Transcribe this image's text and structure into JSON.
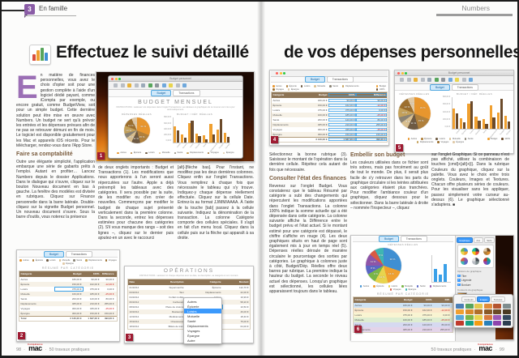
{
  "brand": {
    "top": "Compétence",
    "name": "mac"
  },
  "left": {
    "tab_number": "3",
    "tab_label": "En famille",
    "title": "Effectuez le suivi détaillé",
    "intro": "n matière de finances personnelles, vous avez le choix d'opter soit pour une gestion complète à l'aide d'un logiciel dédié payant, comme iCompta par exemple, ou encore gratuit, comme BudgetView, soit pour un simple budget. Cette dernière solution peut être mise en œuvre avec Numbers. Un budget ne sert qu'à prévoir les entrées et les dépenses prévues afin de ne pas se retrouver démuni en fin de mois. Le logiciel est disponible gratuitement pour les Mac et appareils iOS récents. Pour le télécharger, rendez-vous dans l'App Store.",
    "subhead1": "Faire sa comptabilité",
    "col1b": "Outre une élégante simplicité, l'application embarque une série de gabarits prêts à l'emploi. Autant en profiter… Lancez Numbers depuis le dossier Applications. Dans le dialogue qui s'ouvre, cliquez sur le bouton Nouveau document en bas à gauche. La fenêtre des modèles est divisée en rubriques. Cliquez sur Finance personnelle dans la barre latérale. Double-cliquez sur la vignette Budget personnel. Un nouveau document s'ouvre. Sous la barre d'outils, vous noterez la présence",
    "col2": "de deux onglets importants : Budget et Transactions (1). Les modifications que nous apporterons à l'un seront aussi répercutées sur l'autre. Apple a déjà prérempli les tableaux avec des catégories. Il sera possible par la suite, de les modifier ou d'en créer de nouvelles. Commençons par modifier le budget de chaque sujet présenté verticalement dans la première colonne. Dans la seconde, entrez les dépenses estimées pour chacune des catégories (2). S'il vous manque des rangs – soit des lignes –, cliquez sur le dernier puis ajoutez-en un avec le raccourci",
    "col3": "[alt]-[flèche bas]. Pour l'instant, ne modifiez pas les deux dernières colonnes. Cliquez enfin sur l'onglet Transactions. Vous remplirez à chaque fois que nécessaire le tableau qui s'y trouve. Indiquez-y chaque dépense réellement effectuée. Cliquez sur la cellule Date. Entrez-la au format JJ/MM/AAAA. À l'aide de la touche [tab] passez à la cellule suivante. Indiquez la dénomination de la transaction. La colonne Catégorie comporte des cellules spéciales. Il s'agit en fait d'un menu local. Cliquez dans la cellule puis sur la flèche qui apparaît à sa droite.",
    "footer": {
      "page": "98",
      "text": "50 travaux pratiques"
    }
  },
  "right": {
    "header_label": "Numbers",
    "title": "de vos dépenses personnelles",
    "col1a": "Sélectionnez la bonne rubrique (3). Saisissez le montant de l'opération dans la dernière cellule. Répétez cela autant de fois que nécessaire.",
    "subhead1": "Consulter l'état des finances",
    "col1b": "Revenez sur l'onglet Budget. Vous constaterez que le tableau Résumé par catégorie a subi des changements qui répercutent les modifications apportées dans l'onglet Transactions. La colonne 100% indique la somme actuelle qui a été dépensée dans cette catégorie. La colonne suivante affiche la Différence entre le budget prévu et l'état actuel. Si le montant estimé pour une catégorie est dépassé, le chiffre s'affiche en rouge (4). Les deux graphiques situés en haut de page sont également mis à jour en temps réel (5). Dépenses réelles déroule de manière circulaire le pourcentage des sorties par catégories. Le graphique à colonnes juste à côté, Budget/Dép. Réelles offre deux barres par rubrique. La première indique la hauteur du budget. La seconde le niveau actuel des dépenses. Lorsqu'un graphique est sélectionné, les cellules liées apparaissent toujours dans le tableau.",
    "subhead2": "Embellir son budget",
    "col2": "Les couleurs utilisées dans ce fichier sont très sobres, mais pas forcément au goût de tout le monde. De plus, il serait plus facile de s'y retrouver dans les parts du graphique circulaire si les teintes attribuées aux catégories étaient plus tranchées. Pour modifier l'ambiance couleur d'un graphique, cliquez dessous pour le sélectionner. Dans la barre latérale à droite – nommée l'Inspecteur –, cliquez",
    "col3": "sur l'onglet Graphique. Si ce panneau n'est pas affiché, utilisez la combinaison de touches [cmd]+[alt]+[i]. Dans la rubrique Couleurs du graphique, cliquez sur la palette. Vous avez le choix entre trois onglets. Couleurs, Images et Textures. Chacun offre plusieurs séries de couleurs. Pour les visualiser sans les appliquer, passez simplement votre curseur au-dessus (6). Le graphique sélectionné s'adaptera. ■",
    "footer": {
      "page": "99",
      "text": "50 travaux pratiques"
    }
  },
  "ui": {
    "traffic": [
      "#ff5f57",
      "#febc2e",
      "#28c840"
    ],
    "tabs": [
      "Budget",
      "Transactions"
    ],
    "toolbar_icons": [
      {
        "n": "view-icon",
        "c": "#b9bec5"
      },
      {
        "n": "zoom-icon",
        "c": "#b9bec5"
      },
      {
        "n": "category-icon",
        "c": "#e8b23a"
      },
      {
        "n": "refresh-icon",
        "c": "#b9bec5"
      },
      {
        "n": "table-icon",
        "c": "#9aa9b8"
      },
      {
        "n": "chart-icon",
        "c": "#58a55c"
      },
      {
        "n": "text-icon",
        "c": "#8f959c"
      },
      {
        "n": "shape-icon",
        "c": "#6fa8dc"
      },
      {
        "n": "comment-icon",
        "c": "#e8d44d"
      },
      {
        "n": "share-icon",
        "c": "#b9bec5"
      },
      {
        "n": "format-icon",
        "c": "#6fa8dc"
      }
    ],
    "series_legend": {
      "labels": [
        "Budget",
        "100%"
      ],
      "colors": [
        "#f0a030",
        "#6b4a2a"
      ]
    }
  },
  "shots": {
    "s1": {
      "badge": "1",
      "window_title": "Budget personnel",
      "sheet_title": "BUDGET MENSUEL",
      "instructions": "INSTRUCTIONS : saisissez vos dépenses dans l'onglet Transactions. Les tableaux et graphiques de ce résumé sont mis à jour automatiquement."
    },
    "s2": {
      "badge": "2"
    },
    "s3": {
      "badge": "3"
    },
    "s4": {
      "badge": "4"
    },
    "s5": {
      "badge": "5",
      "window_title": "Budget personnel"
    },
    "s6": {
      "badge": "6"
    }
  },
  "chart_data": [
    {
      "type": "pie",
      "title": "DÉPENSES RÉELLES",
      "labels": [
        "Autres",
        "Épicerie",
        "Loisirs",
        "Mutuelle",
        "Santé",
        "Déplacements",
        "Voyages",
        "Épargne"
      ],
      "values": [
        31,
        15,
        11,
        8,
        6,
        10,
        12,
        7
      ],
      "colors": [
        "#e8962e",
        "#b0803c",
        "#6e5a43",
        "#d9bf8f",
        "#8a8375",
        "#c4a15a",
        "#9c6f2f",
        "#e0c9a6"
      ]
    },
    {
      "type": "bar",
      "title": "BUDGET / DÉP. RÉELLES",
      "categories": [
        "Autres",
        "Épicerie",
        "Loisirs",
        "Mutuelle",
        "Santé",
        "Déplacements",
        "Voyages",
        "Épargne"
      ],
      "series": [
        {
          "name": "Budget",
          "color": "#f0a030",
          "values": [
            520,
            260,
            640,
            300,
            240,
            600,
            420,
            330
          ]
        },
        {
          "name": "Dép. réelles",
          "color": "#6b4a2a",
          "values": [
            390,
            160,
            700,
            210,
            120,
            280,
            760,
            190
          ]
        }
      ],
      "ymax": 800,
      "ylabels": [
        "800,00 €",
        "600,00 €",
        "400,00 €",
        "200,00 €",
        "0,00 €"
      ]
    },
    {
      "type": "pie",
      "title": "DÉPENSES RÉELLES",
      "labels": [
        "Autres",
        "Épicerie",
        "Loisirs",
        "Mutuelle",
        "Santé",
        "Déplacements",
        "Voyages",
        "Épargne"
      ],
      "values": [
        30,
        16,
        12,
        9,
        8,
        11,
        6,
        8
      ],
      "colors": [
        "#3f8fd2",
        "#f0a030",
        "#e8d44d",
        "#7ab648",
        "#5a67c4",
        "#8e55a8",
        "#d95b43",
        "#3fb6b2"
      ]
    }
  ],
  "tables": {
    "resume": {
      "title": "RÉSUMÉ PAR CATÉGORIE",
      "headers": [
        "Catégorie",
        "Budget",
        "100%",
        "Différence"
      ],
      "rows": [
        [
          "Autres",
          "180,00 €",
          "90,00 €",
          "90,00 €"
        ],
        [
          "Épicerie",
          "150,00 €",
          "162,00 €",
          "-12,00 €"
        ],
        [
          "Loisirs",
          "375,00 €",
          "375,00 €",
          "0,00 €"
        ],
        [
          "Mutuelle",
          "160,00 €",
          "185,00 €",
          "-25,00 €"
        ],
        [
          "Santé",
          "200,00 €",
          "120,00 €",
          "80,00 €"
        ],
        [
          "Déplacements",
          "465,00 €",
          "210,00 €",
          "255,00 €"
        ],
        [
          "Voyages",
          "300,00 €",
          "345,00 €",
          "-45,00 €"
        ],
        [
          "Épargne",
          "300,00 €",
          "150,00 €",
          "150,00 €"
        ]
      ],
      "total": [
        "Total",
        "2 130,00 €",
        "1 637,00 €",
        "493,00 €"
      ]
    },
    "operations": {
      "title": "OPÉRATIONS",
      "instructions": "INSTRUCTIONS : saisissez ici chaque dépense avec sa date, sa description, sa catégorie et son montant.",
      "headers": [
        "Date",
        "Description",
        "Catégorie",
        "Montant"
      ],
      "rows": [
        [
          "01/10/14",
          "Supermarché",
          "Épicerie",
          "112,70 €"
        ],
        [
          "03/10/14",
          "Taxi",
          "Déplacements",
          "22,00 €"
        ],
        [
          "04/10/14",
          "Forfait mobile",
          "Autres",
          "19,99 €"
        ],
        [
          "06/10/14",
          "Carburant",
          "Déplacements",
          "58,20 €"
        ],
        [
          "08/10/14",
          "Place de cinéma",
          "Loisirs",
          "10,50 €"
        ],
        [
          "10/10/14",
          "Restaurant",
          "Loisirs",
          "46,00 €"
        ],
        [
          "12/10/14",
          "Médicaments",
          "Santé",
          "18,40 €"
        ],
        [
          "15/10/14",
          "Chaussures",
          "Autres",
          "75,00 €"
        ],
        [
          "18/10/14",
          "Billets de train",
          "Voyages",
          "64,00 €"
        ]
      ]
    },
    "menu": {
      "items": [
        "Autres",
        "Épicerie",
        "Loisirs",
        "Mutuelle",
        "Santé",
        "Déplacements",
        "Voyages",
        "Épargne",
        "Autre"
      ],
      "selected_index": 2
    },
    "resume_color": {
      "title": "RÉSUMÉ PAR CATÉGORIE",
      "headers": [
        "Catégorie",
        "Budget",
        "100%",
        "Diff."
      ],
      "rows": [
        [
          "Autres",
          "180,00 €",
          "90,00 €",
          "90,00 €"
        ],
        [
          "Épicerie",
          "150,00 €",
          "162,00 €",
          "-12,00 €"
        ],
        [
          "Loisirs",
          "375,00 €",
          "375,00 €",
          "0,00 €"
        ],
        [
          "Mutuelle",
          "160,00 €",
          "185,00 €",
          "-25,00 €"
        ],
        [
          "Santé",
          "200,00 €",
          "120,00 €",
          "80,00 €"
        ],
        [
          "Déplacements",
          "465,00 €",
          "210,00 €",
          "255,00 €"
        ]
      ]
    }
  },
  "inspector": {
    "tabs": [
      "Graphique",
      "Axe",
      "Série"
    ],
    "options_heading": "Options de graphique",
    "checkboxes": [
      "Titre",
      "Légende",
      "Bordure"
    ],
    "colors_heading": "Couleurs du graphique",
    "thumb_palettes": [
      [
        "#3f8fd2",
        "#f0a030",
        "#e8d44d",
        "#7ab648"
      ],
      [
        "#2c3e50",
        "#e74c3c",
        "#f1c40f",
        "#1abc9c"
      ],
      [
        "#6b4a26",
        "#d98a2b",
        "#b0803c",
        "#e0c9a6"
      ],
      [
        "#8e55a8",
        "#5a67c4",
        "#3fb6b2",
        "#d95b43"
      ],
      [
        "#444b52",
        "#7f8c8d",
        "#b8bdc4",
        "#e0e0e0"
      ],
      [
        "#16a085",
        "#2980b9",
        "#8e44ad",
        "#c0392b"
      ]
    ],
    "palette": {
      "tabs": [
        "Couleurs",
        "Images",
        "Textures"
      ],
      "selected_index": 1,
      "swatches": [
        [
          "#4a7fb5",
          "#58a55c",
          "#e3c94f",
          "#e08b3a",
          "#b5542f",
          "#7f8c8d"
        ],
        [
          "#f0a030",
          "#d98a2b",
          "#b06f2a",
          "#8a5a28",
          "#6b4a26",
          "#4a3a22"
        ],
        [
          "#5aa8d8",
          "#7ab648",
          "#e8d44d",
          "#d97b3f",
          "#9b59b6",
          "#34495e"
        ],
        [
          "#c0392b",
          "#16a085",
          "#f39c12",
          "#2980b9",
          "#8e44ad",
          "#2c3e50"
        ]
      ]
    }
  }
}
